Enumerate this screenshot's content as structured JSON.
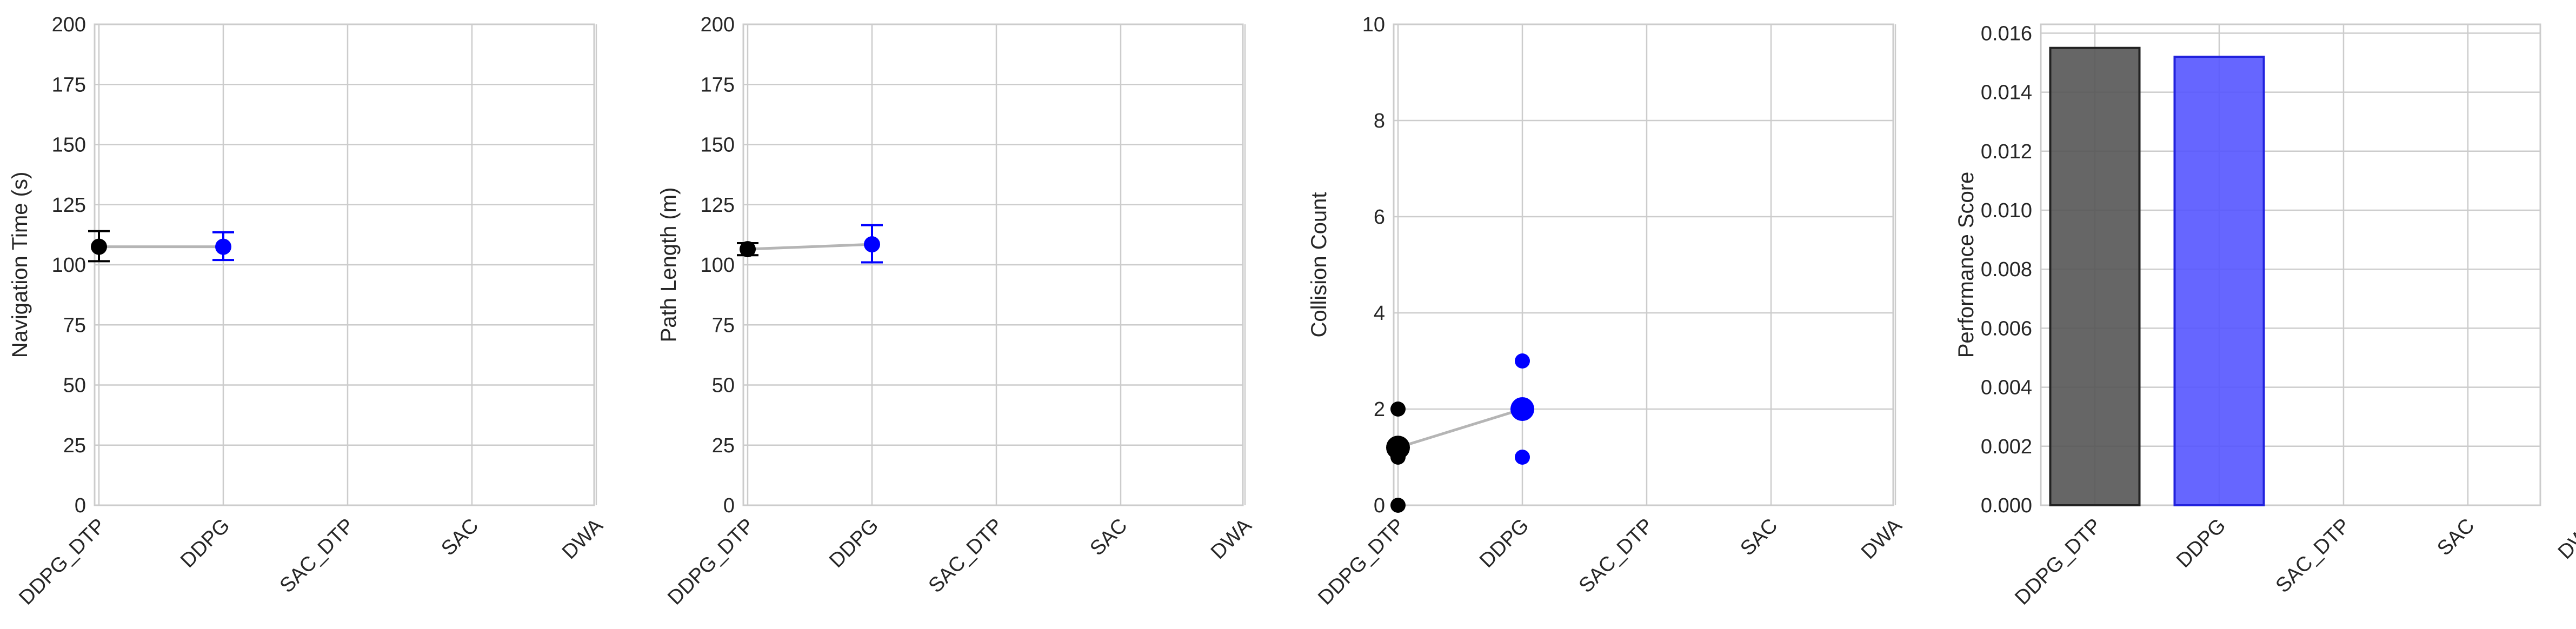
{
  "chart_data": [
    {
      "type": "scatter",
      "ylabel": "Navigation Time (s)",
      "xlabel": "",
      "title": "",
      "categories": [
        "DDPG_DTP",
        "DDPG",
        "SAC_DTP",
        "SAC",
        "DWA"
      ],
      "ylim": [
        0,
        200
      ],
      "yticks": [
        0,
        25,
        50,
        75,
        100,
        125,
        150,
        175,
        200
      ],
      "grid": true,
      "series": [
        {
          "category": "DDPG_DTP",
          "mean": 107.5,
          "err_low": 101.5,
          "err_high": 114,
          "color": "#000000"
        },
        {
          "category": "DDPG",
          "mean": 107.5,
          "err_low": 102,
          "err_high": 113.5,
          "color": "#0000ff"
        }
      ]
    },
    {
      "type": "scatter",
      "ylabel": "Path Length (m)",
      "xlabel": "",
      "title": "",
      "categories": [
        "DDPG_DTP",
        "DDPG",
        "SAC_DTP",
        "SAC",
        "DWA"
      ],
      "ylim": [
        0,
        200
      ],
      "yticks": [
        0,
        25,
        50,
        75,
        100,
        125,
        150,
        175,
        200
      ],
      "grid": true,
      "series": [
        {
          "category": "DDPG_DTP",
          "mean": 106.5,
          "err_low": 104,
          "err_high": 109,
          "color": "#000000"
        },
        {
          "category": "DDPG",
          "mean": 108.5,
          "err_low": 101,
          "err_high": 116.5,
          "color": "#0000ff"
        }
      ]
    },
    {
      "type": "scatter",
      "ylabel": "Collision Count",
      "xlabel": "",
      "title": "",
      "categories": [
        "DDPG_DTP",
        "DDPG",
        "SAC_DTP",
        "SAC",
        "DWA"
      ],
      "ylim": [
        0,
        10
      ],
      "yticks": [
        0,
        2,
        4,
        6,
        8,
        10
      ],
      "grid": true,
      "series": [
        {
          "category": "DDPG_DTP",
          "mean": 1.2,
          "points": [
            0,
            1,
            1.2,
            2
          ],
          "color": "#000000"
        },
        {
          "category": "DDPG",
          "mean": 2.0,
          "points": [
            1,
            2,
            3
          ],
          "color": "#0000ff"
        }
      ]
    },
    {
      "type": "bar",
      "ylabel": "Performance Score",
      "xlabel": "",
      "title": "",
      "categories": [
        "DDPG_DTP",
        "DDPG",
        "SAC_DTP",
        "SAC",
        "DWA"
      ],
      "ylim": [
        0,
        0.0163
      ],
      "yticks": [
        0.0,
        0.002,
        0.004,
        0.006,
        0.008,
        0.01,
        0.012,
        0.014,
        0.016
      ],
      "ytick_labels": [
        "0.000",
        "0.002",
        "0.004",
        "0.006",
        "0.008",
        "0.010",
        "0.012",
        "0.014",
        "0.016"
      ],
      "grid": true,
      "values": [
        0.0155,
        0.0152,
        null,
        null,
        null
      ],
      "colors": [
        "#555555",
        "#5555ff",
        null,
        null,
        null
      ]
    }
  ]
}
